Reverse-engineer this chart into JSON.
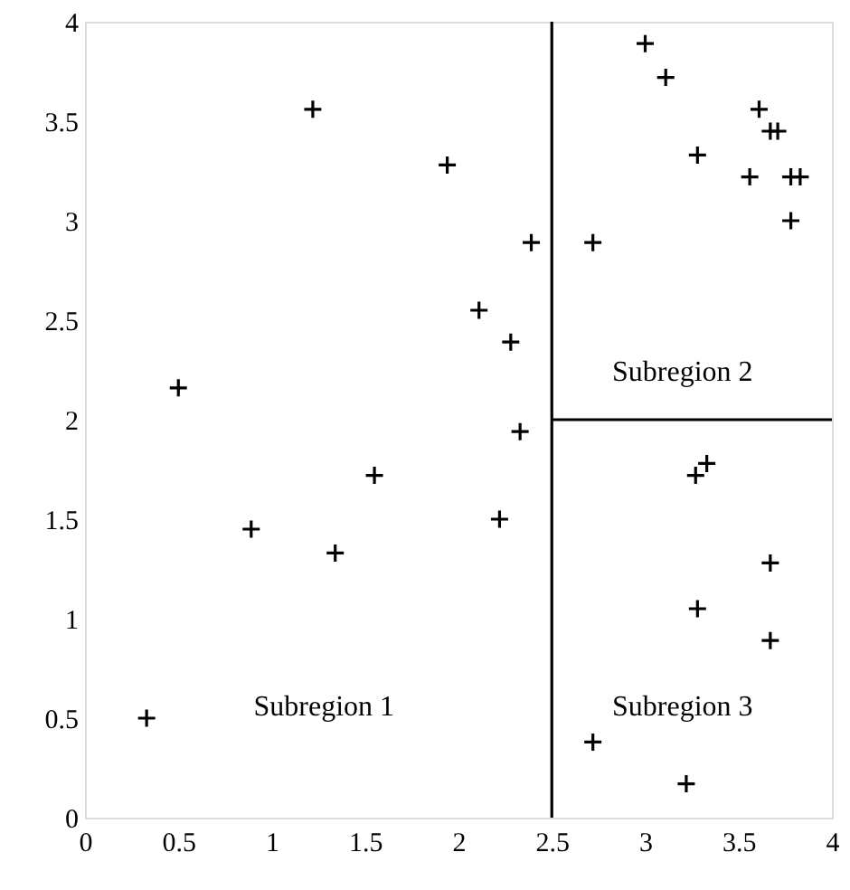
{
  "chart_data": {
    "type": "scatter",
    "marker": "cross",
    "grid": false,
    "xlim": [
      0,
      4
    ],
    "ylim": [
      0,
      4
    ],
    "xticks": [
      0,
      0.5,
      1,
      1.5,
      2,
      2.5,
      3,
      3.5,
      4
    ],
    "yticks": [
      0,
      0.5,
      1,
      1.5,
      2,
      2.5,
      3,
      3.5,
      4
    ],
    "series": [
      {
        "color": "#000000",
        "x": [
          1.22,
          1.94,
          2.39,
          2.72,
          3.0,
          3.11,
          3.28,
          3.61,
          3.67,
          3.71,
          3.56,
          3.78,
          3.83,
          3.78,
          2.11,
          2.28,
          0.5,
          2.33,
          1.55,
          0.89,
          1.34,
          2.22,
          3.27,
          3.33,
          3.67,
          3.28,
          3.67,
          0.33,
          2.72,
          3.22
        ],
        "values": [
          3.56,
          3.28,
          2.89,
          2.89,
          3.89,
          3.72,
          3.33,
          3.56,
          3.45,
          3.45,
          3.22,
          3.22,
          3.22,
          3.0,
          2.55,
          2.39,
          2.16,
          1.94,
          1.72,
          1.45,
          1.33,
          1.5,
          1.72,
          1.78,
          1.28,
          1.05,
          0.89,
          0.5,
          0.38,
          0.17
        ]
      },
      {
        "type": "line",
        "marker": "none",
        "color": "#000000",
        "line_style": "solid",
        "x": [
          2.5,
          2.5
        ],
        "values": [
          0,
          4
        ]
      },
      {
        "type": "line",
        "marker": "none",
        "color": "#000000",
        "line_style": "solid",
        "x": [
          2.5,
          4
        ],
        "values": [
          2,
          2
        ]
      }
    ],
    "annotations": [
      "Subregion 1",
      "Subregion 2",
      "Subregion 3"
    ]
  }
}
